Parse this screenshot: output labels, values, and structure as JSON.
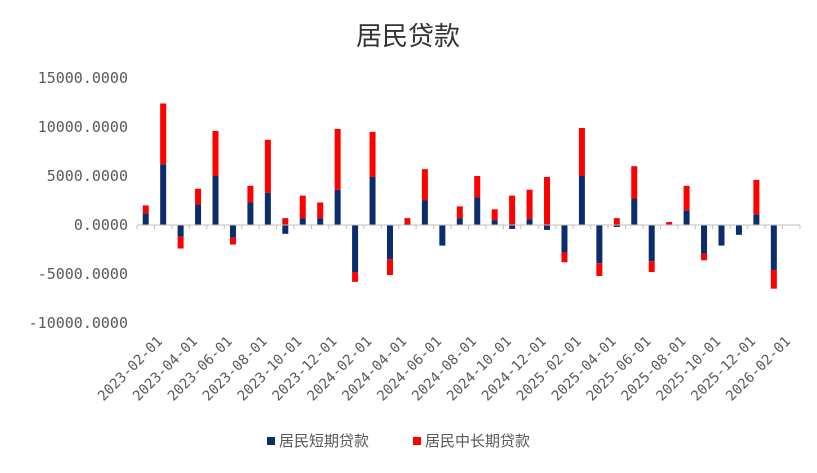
{
  "chart_data": {
    "type": "bar",
    "stacked": true,
    "title": "居民贷款",
    "ylim": [
      -10000,
      15000
    ],
    "y_ticks": [
      "15000.0000",
      "10000.0000",
      "5000.0000",
      "0.0000",
      "-5000.0000",
      "-10000.0000"
    ],
    "y_tick_values": [
      15000,
      10000,
      5000,
      0,
      -5000,
      -10000
    ],
    "categories": [
      "2023-01",
      "2023-02",
      "2023-03",
      "2023-04",
      "2023-05",
      "2023-06",
      "2023-07",
      "2023-08",
      "2023-09",
      "2023-10",
      "2023-11",
      "2023-12",
      "2024-01",
      "2024-02",
      "2024-03",
      "2024-04",
      "2024-05",
      "2024-06",
      "2024-07",
      "2024-08",
      "2024-09",
      "2024-10",
      "2024-11",
      "2024-12",
      "2025-01",
      "2025-02",
      "2025-03",
      "2025-04",
      "2025-05",
      "2025-06",
      "2025-07",
      "2025-08",
      "2025-09",
      "2025-10",
      "2025-11",
      "2025-12",
      "2026-01",
      "2026-02"
    ],
    "x_tick_labels": [
      "2023-02-01",
      "2023-04-01",
      "2023-06-01",
      "2023-08-01",
      "2023-10-01",
      "2023-12-01",
      "2024-02-01",
      "2024-04-01",
      "2024-06-01",
      "2024-08-01",
      "2024-10-01",
      "2024-12-01",
      "2025-02-01",
      "2025-04-01",
      "2025-06-01",
      "2025-08-01",
      "2025-10-01",
      "2025-12-01",
      "2026-02-01"
    ],
    "series": [
      {
        "name": "居民短期贷款",
        "color": "#0b2d6b",
        "values": [
          1200,
          6200,
          -1200,
          2100,
          5000,
          -1300,
          2300,
          3300,
          -900,
          700,
          700,
          3600,
          -4800,
          4900,
          -3500,
          100,
          2500,
          -2100,
          700,
          2800,
          500,
          -400,
          600,
          -500,
          -2800,
          5000,
          -3900,
          -200,
          2700,
          -3700,
          0,
          1500,
          -2900,
          -2100,
          -1000,
          1100,
          -4600,
          0
        ]
      },
      {
        "name": "居民中长期贷款",
        "color": "#ff0000",
        "values": [
          800,
          6200,
          -1200,
          1600,
          4600,
          -700,
          1700,
          5400,
          700,
          2300,
          1600,
          6200,
          -1000,
          4600,
          -1600,
          600,
          3200,
          0,
          1200,
          2200,
          1100,
          3000,
          3000,
          4900,
          -1000,
          4900,
          -1300,
          700,
          3300,
          -1100,
          300,
          2500,
          -700,
          0,
          0,
          3500,
          -1900,
          0
        ]
      }
    ],
    "legend": "bottom"
  }
}
